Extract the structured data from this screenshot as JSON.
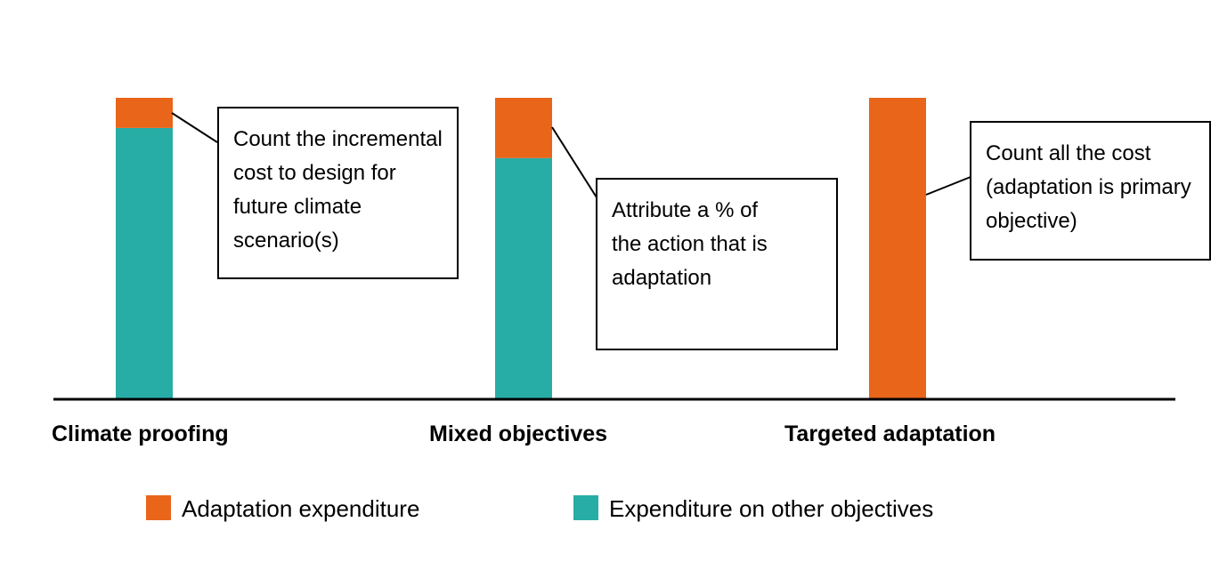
{
  "colors": {
    "adaptation": "#e8651a",
    "other": "#27ada6",
    "axis": "#000000"
  },
  "legend": {
    "adaptation_label": "Adaptation expenditure",
    "other_label": "Expenditure on other objectives"
  },
  "annotations": {
    "climate_proofing": "Count the incremental cost to design for future climate scenario(s)",
    "mixed_objectives": "Attribute a % of the action that is adaptation",
    "targeted_adaptation": "Count all the cost (adaptation is primary objective)"
  },
  "chart_data": {
    "type": "bar",
    "stacked": true,
    "title": "",
    "xlabel": "",
    "ylabel": "",
    "ylim": [
      0,
      100
    ],
    "grid": false,
    "legend_position": "bottom",
    "categories": [
      "Climate proofing",
      "Mixed objectives",
      "Targeted adaptation"
    ],
    "series": [
      {
        "name": "Expenditure on other objectives",
        "values": [
          90,
          80,
          0
        ]
      },
      {
        "name": "Adaptation expenditure",
        "values": [
          10,
          20,
          100
        ]
      }
    ]
  }
}
